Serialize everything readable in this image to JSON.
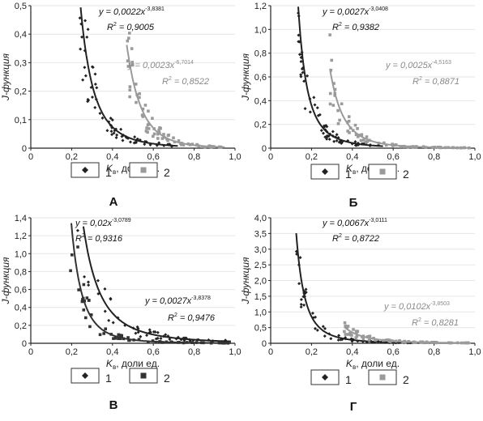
{
  "chart_data": [
    {
      "type": "scatter",
      "panel_label": "А",
      "ylabel": "J-функция",
      "xlabel_main": "K",
      "xlabel_sub": "в",
      "xlabel_rest": ", доли ед.",
      "xlim": [
        0,
        1.0
      ],
      "ylim": [
        0,
        0.5
      ],
      "xticks": [
        "0",
        "0,2",
        "0,4",
        "0,6",
        "0,8",
        "1,0"
      ],
      "yticks": [
        "0",
        "0,1",
        "0,2",
        "0,3",
        "0,4",
        "0,5"
      ],
      "series": [
        {
          "name": "1",
          "marker": "diamond",
          "color": "#222222",
          "fit": {
            "a": 0.0022,
            "b": -3.8381,
            "x_start": 0.24,
            "x_end": 0.72
          },
          "equation": {
            "y": "y = 0,0022x",
            "exp": "-3,8381",
            "r2": "= 0,9005"
          }
        },
        {
          "name": "2",
          "marker": "square",
          "color": "#9a9a9a",
          "fit": {
            "a": 0.0023,
            "b": -6.7014,
            "x_start": 0.47,
            "x_end": 0.95
          },
          "equation": {
            "y": "y = 0,0023x",
            "exp": "-6,7014",
            "r2": "= 0,8522"
          }
        }
      ]
    },
    {
      "type": "scatter",
      "panel_label": "Б",
      "ylabel": "J-функция",
      "xlabel_main": "K",
      "xlabel_sub": "в",
      "xlabel_rest": ", доли ед.",
      "xlim": [
        0,
        1.0
      ],
      "ylim": [
        0,
        1.2
      ],
      "xticks": [
        "0",
        "0,2",
        "0,4",
        "0,6",
        "0,8",
        "1,0"
      ],
      "yticks": [
        "0",
        "0,2",
        "0,4",
        "0,6",
        "0,8",
        "1,0",
        "1,2"
      ],
      "series": [
        {
          "name": "1",
          "marker": "diamond",
          "color": "#222222",
          "fit": {
            "a": 0.0027,
            "b": -3.0408,
            "x_start": 0.135,
            "x_end": 0.55
          },
          "equation": {
            "y": "y = 0,0027x",
            "exp": "-3,0408",
            "r2": "= 0,9382"
          }
        },
        {
          "name": "2",
          "marker": "square",
          "color": "#9a9a9a",
          "fit": {
            "a": 0.0025,
            "b": -4.5163,
            "x_start": 0.29,
            "x_end": 0.98
          },
          "equation": {
            "y": "y = 0,0025x",
            "exp": "-4,5163",
            "r2": "= 0,8871"
          }
        }
      ]
    },
    {
      "type": "scatter",
      "panel_label": "В",
      "ylabel": "J-функция",
      "xlabel_main": "K",
      "xlabel_sub": "в",
      "xlabel_rest": ", доли ед.",
      "xlim": [
        0,
        1.0
      ],
      "ylim": [
        0,
        1.4
      ],
      "xticks": [
        "0",
        "0,2",
        "0,4",
        "0,6",
        "0,8",
        "1,0"
      ],
      "yticks": [
        "0",
        "0,2",
        "0,4",
        "0,6",
        "0,8",
        "1,0",
        "1,2",
        "1,4"
      ],
      "series": [
        {
          "name": "1",
          "marker": "diamond",
          "color": "#222222",
          "fit": {
            "a": 0.02,
            "b": -3.0789,
            "x_start": 0.13,
            "x_end": 0.98
          },
          "equation": {
            "y": "y = 0,02x",
            "exp": "-3,0789",
            "r2": "= 0,9316"
          }
        },
        {
          "name": "2",
          "marker": "square",
          "color": "#333333",
          "fit": {
            "a": 0.0027,
            "b": -3.8378,
            "x_start": 0.15,
            "x_end": 0.98
          },
          "equation": {
            "y": "y = 0,0027x",
            "exp": "-3,8378",
            "r2": "= 0,9476"
          }
        }
      ]
    },
    {
      "type": "scatter",
      "panel_label": "Г",
      "ylabel": "J-функция",
      "xlabel_main": "K",
      "xlabel_sub": "в",
      "xlabel_rest": ", доли ед.",
      "xlim": [
        0,
        1.0
      ],
      "ylim": [
        0,
        4.0
      ],
      "xticks": [
        "0",
        "0,2",
        "0,4",
        "0,6",
        "0,8",
        "1,0"
      ],
      "yticks": [
        "0",
        "0,5",
        "1,0",
        "1,5",
        "2,0",
        "2,5",
        "3,0",
        "3,5",
        "4,0"
      ],
      "series": [
        {
          "name": "1",
          "marker": "diamond",
          "color": "#222222",
          "fit": {
            "a": 0.0067,
            "b": -3.0111,
            "x_start": 0.125,
            "x_end": 0.7
          },
          "equation": {
            "y": "y = 0,0067x",
            "exp": "-3,0111",
            "r2": "= 0,8722"
          }
        },
        {
          "name": "2",
          "marker": "square",
          "color": "#9a9a9a",
          "fit": {
            "a": 0.0102,
            "b": -3.8503,
            "x_start": 0.36,
            "x_end": 0.98
          },
          "equation": {
            "y": "y = 0,0102x",
            "exp": "-3,8503",
            "r2": "= 0,8281"
          }
        }
      ]
    }
  ],
  "legend": {
    "item1": "1",
    "item2": "2"
  },
  "colors": {
    "axis": "#222222",
    "grid": "#e6e6e6"
  }
}
